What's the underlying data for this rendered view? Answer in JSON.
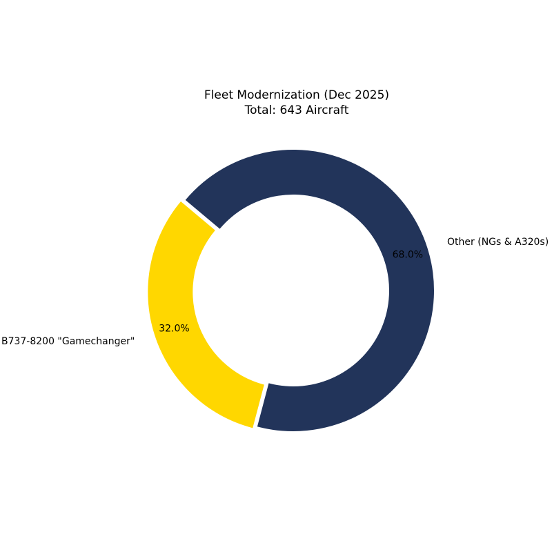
{
  "chart_data": {
    "type": "pie",
    "title": "Fleet Modernization (Dec 2025)",
    "subtitle": "Total: 643 Aircraft",
    "donut": true,
    "slices": [
      {
        "label": "B737-8200 \"Gamechanger\"",
        "value": 32.0,
        "pct_label": "32.0%",
        "color": "#FFD700",
        "exploded": true
      },
      {
        "label": "Other (NGs & A320s)",
        "value": 68.0,
        "pct_label": "68.0%",
        "color": "#22345A",
        "exploded": false
      }
    ]
  }
}
